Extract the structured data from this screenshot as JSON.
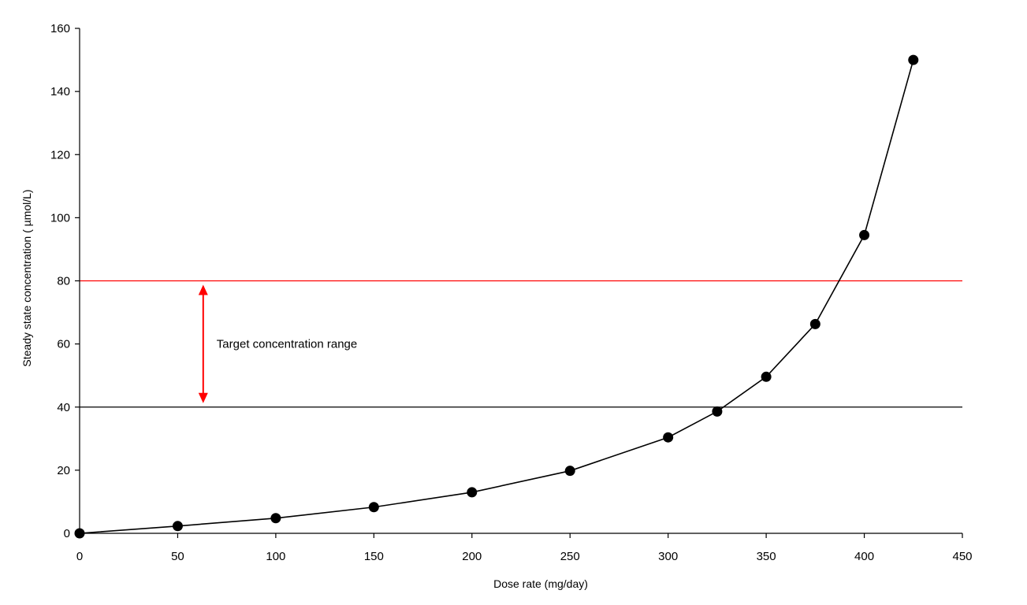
{
  "chart_data": {
    "type": "line",
    "title": "",
    "xlabel": "Dose rate (mg/day)",
    "ylabel": "Steady state concentration ( µmol/L)",
    "xlim": [
      0,
      450
    ],
    "ylim": [
      0,
      160
    ],
    "x_ticks": [
      0,
      50,
      100,
      150,
      200,
      250,
      300,
      350,
      400,
      450
    ],
    "y_ticks": [
      0,
      20,
      40,
      60,
      80,
      100,
      120,
      140,
      160
    ],
    "grid": false,
    "legend": "none",
    "series": [
      {
        "x": [
          0,
          50,
          100,
          150,
          200,
          250,
          300,
          325,
          350,
          375,
          400,
          425
        ],
        "y": [
          0,
          2.3,
          4.8,
          8.3,
          13,
          19.8,
          30.4,
          38.6,
          49.6,
          66.3,
          94.5,
          150
        ],
        "color": "#000000",
        "marker": "circle"
      }
    ],
    "reference_lines": [
      {
        "y": 80,
        "color": "#ff0000"
      },
      {
        "y": 40,
        "color": "#000000"
      }
    ],
    "annotation": {
      "text": "Target concentration range",
      "x": 63,
      "y_from": 40,
      "y_to": 80,
      "color": "#ff0000"
    }
  }
}
